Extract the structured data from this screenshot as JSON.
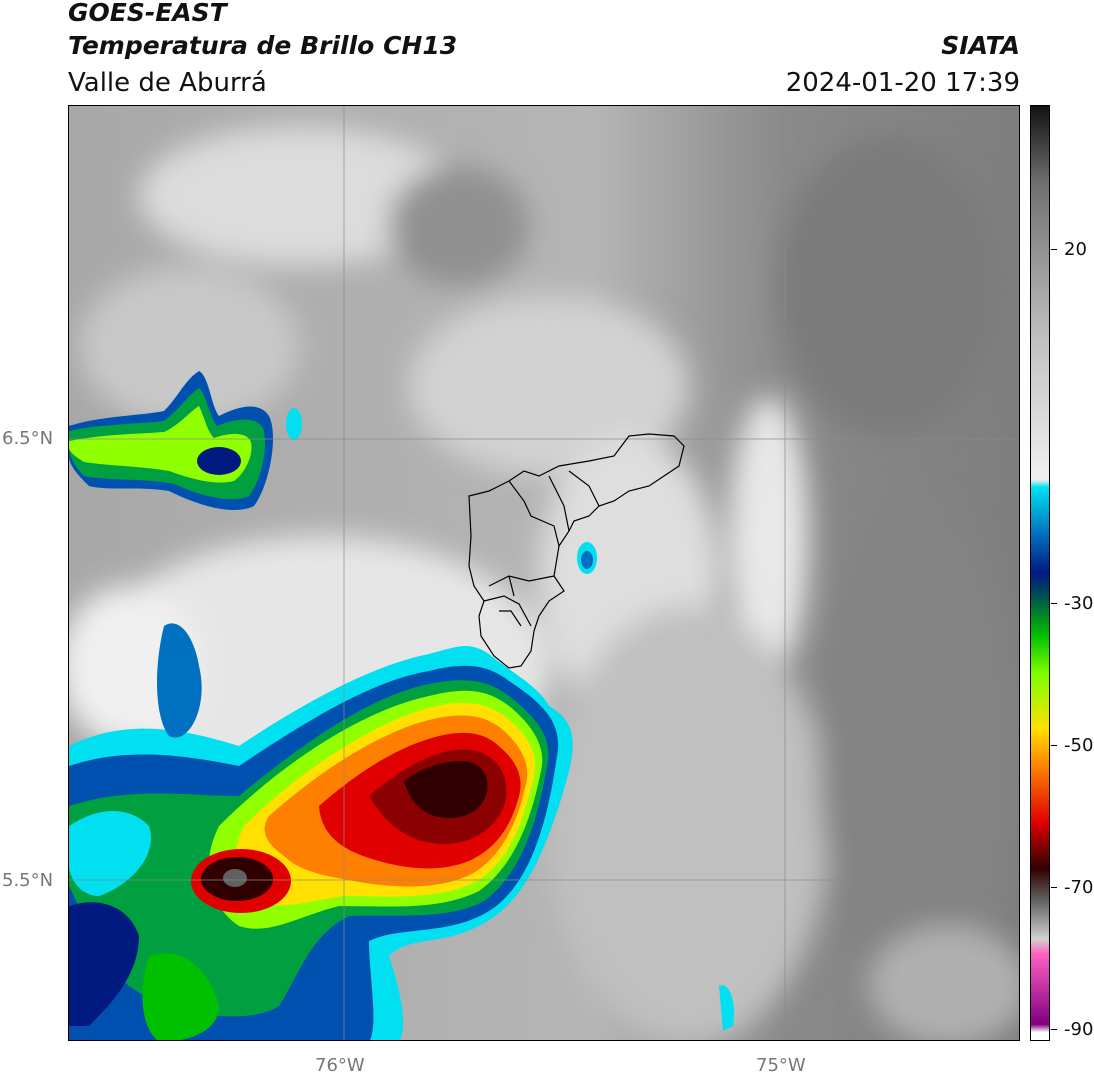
{
  "header": {
    "satellite": "GOES-EAST",
    "product": "Temperatura de Brillo CH13",
    "organization": "SIATA",
    "region": "Valle de Aburrá",
    "timestamp": "2024-01-20 17:39"
  },
  "map": {
    "lat_labels": [
      "6.5°N",
      "5.5°N"
    ],
    "lon_labels": [
      "76°W",
      "75°W"
    ]
  },
  "colorbar": {
    "tick_labels": [
      "20",
      "-30",
      "-50",
      "-70",
      "-90"
    ],
    "stops": [
      {
        "value": 30,
        "color": "#111111"
      },
      {
        "value": 20,
        "color": "#707070"
      },
      {
        "value": 0,
        "color": "#c0c0c0"
      },
      {
        "value": -18,
        "color": "#f0f0f0"
      },
      {
        "value": -19,
        "color": "#00e0f0"
      },
      {
        "value": -25,
        "color": "#0070c0"
      },
      {
        "value": -30,
        "color": "#001a80"
      },
      {
        "value": -33,
        "color": "#005050"
      },
      {
        "value": -38,
        "color": "#00c000"
      },
      {
        "value": -43,
        "color": "#80ff00"
      },
      {
        "value": -50,
        "color": "#ffe000"
      },
      {
        "value": -55,
        "color": "#ff8000"
      },
      {
        "value": -62,
        "color": "#e00000"
      },
      {
        "value": -68,
        "color": "#300000"
      },
      {
        "value": -72,
        "color": "#606060"
      },
      {
        "value": -77,
        "color": "#d0d0d0"
      },
      {
        "value": -79,
        "color": "#ff60c0"
      },
      {
        "value": -88,
        "color": "#800080"
      },
      {
        "value": -89,
        "color": "#ffffff"
      }
    ]
  }
}
